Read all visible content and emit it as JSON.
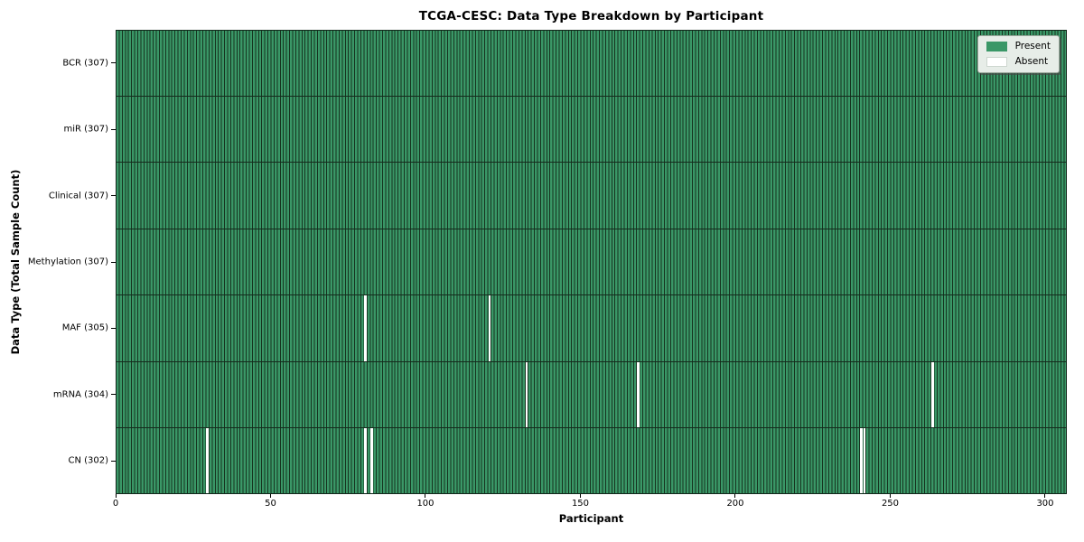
{
  "chart_data": {
    "type": "heatmap",
    "title": "TCGA-CESC: Data Type Breakdown by Participant",
    "xlabel": "Participant",
    "ylabel": "Data Type (Total Sample Count)",
    "n_participants": 307,
    "x_ticks": [
      0,
      50,
      100,
      150,
      200,
      250,
      300
    ],
    "rows": [
      {
        "label": "BCR (307)",
        "data_type": "BCR",
        "present_count": 307,
        "absent_participants": []
      },
      {
        "label": "miR (307)",
        "data_type": "miR",
        "present_count": 307,
        "absent_participants": []
      },
      {
        "label": "Clinical (307)",
        "data_type": "Clinical",
        "present_count": 307,
        "absent_participants": []
      },
      {
        "label": "Methylation (307)",
        "data_type": "Methylation",
        "present_count": 307,
        "absent_participants": []
      },
      {
        "label": "MAF (305)",
        "data_type": "MAF",
        "present_count": 305,
        "absent_participants": [
          80,
          120
        ]
      },
      {
        "label": "mRNA (304)",
        "data_type": "mRNA",
        "present_count": 304,
        "absent_participants": [
          132,
          168,
          263
        ]
      },
      {
        "label": "CN (302)",
        "data_type": "CN",
        "present_count": 302,
        "absent_participants": [
          29,
          80,
          82,
          240,
          241
        ]
      }
    ],
    "legend": {
      "position": "upper right",
      "present_label": "Present",
      "absent_label": "Absent"
    },
    "colors": {
      "present": "#3a9767",
      "absent": "#ffffff",
      "cell_edge": "#16331f",
      "row_divider": "#142a1c",
      "text": "#000000"
    }
  }
}
